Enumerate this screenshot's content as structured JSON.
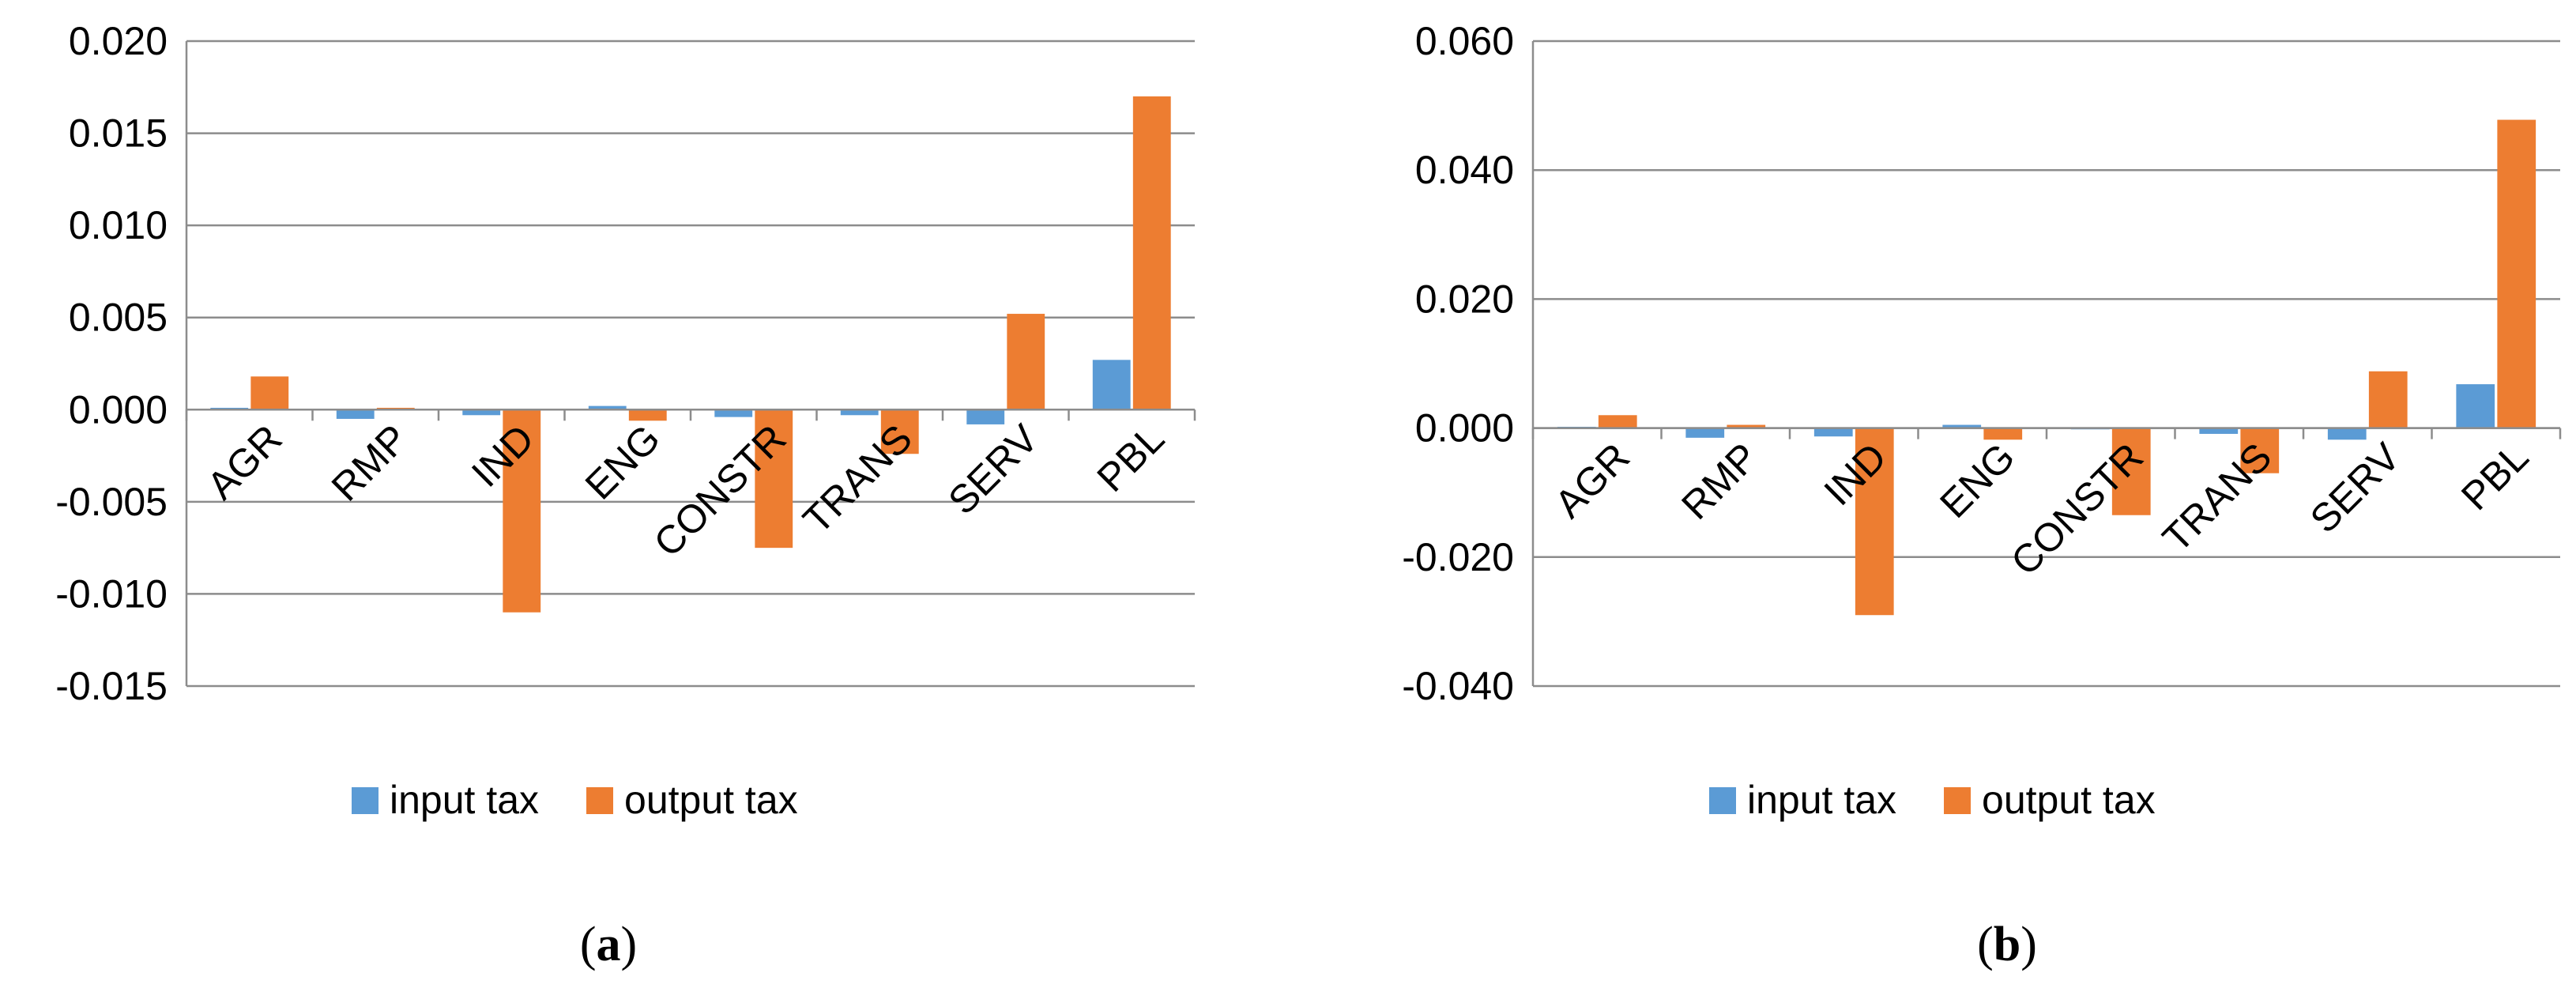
{
  "chart_data": [
    {
      "type": "bar",
      "panel_label": "a",
      "categories": [
        "AGR",
        "RMP",
        "IND",
        "ENG",
        "CONSTR",
        "TRANS",
        "SERV",
        "PBL"
      ],
      "series": [
        {
          "name": "input tax",
          "values": [
            0.0001,
            -0.0005,
            -0.0003,
            0.0002,
            -0.0004,
            -0.0003,
            -0.0008,
            0.0027
          ]
        },
        {
          "name": "output tax",
          "values": [
            0.0018,
            0.0001,
            -0.011,
            -0.0006,
            -0.0075,
            -0.0024,
            0.0052,
            0.017
          ]
        }
      ],
      "ylim": [
        -0.015,
        0.02
      ],
      "yticks": [
        "0.020",
        "0.015",
        "0.010",
        "0.005",
        "0.000",
        "-0.005",
        "-0.010",
        "-0.015"
      ],
      "ytick_values": [
        0.02,
        0.015,
        0.01,
        0.005,
        0.0,
        -0.005,
        -0.01,
        -0.015
      ],
      "grid": true,
      "legend_position": "bottom",
      "title": "",
      "xlabel": "",
      "ylabel": ""
    },
    {
      "type": "bar",
      "panel_label": "b",
      "categories": [
        "AGR",
        "RMP",
        "IND",
        "ENG",
        "CONSTR",
        "TRANS",
        "SERV",
        "PBL"
      ],
      "series": [
        {
          "name": "input tax",
          "values": [
            0.0002,
            -0.0015,
            -0.0013,
            0.0005,
            -0.0002,
            -0.0009,
            -0.0018,
            0.0068
          ]
        },
        {
          "name": "output tax",
          "values": [
            0.002,
            0.0005,
            -0.029,
            -0.0018,
            -0.0135,
            -0.007,
            0.0088,
            0.0478
          ]
        }
      ],
      "ylim": [
        -0.04,
        0.06
      ],
      "yticks": [
        "0.060",
        "0.040",
        "0.020",
        "0.000",
        "-0.020",
        "-0.040"
      ],
      "ytick_values": [
        0.06,
        0.04,
        0.02,
        0.0,
        -0.02,
        -0.04
      ],
      "grid": true,
      "legend_position": "bottom",
      "title": "",
      "xlabel": "",
      "ylabel": ""
    }
  ],
  "colors": {
    "input_tax": "#5b9bd5",
    "output_tax": "#ed7d31",
    "grid": "#8c8c8c",
    "axis": "#8c8c8c"
  }
}
